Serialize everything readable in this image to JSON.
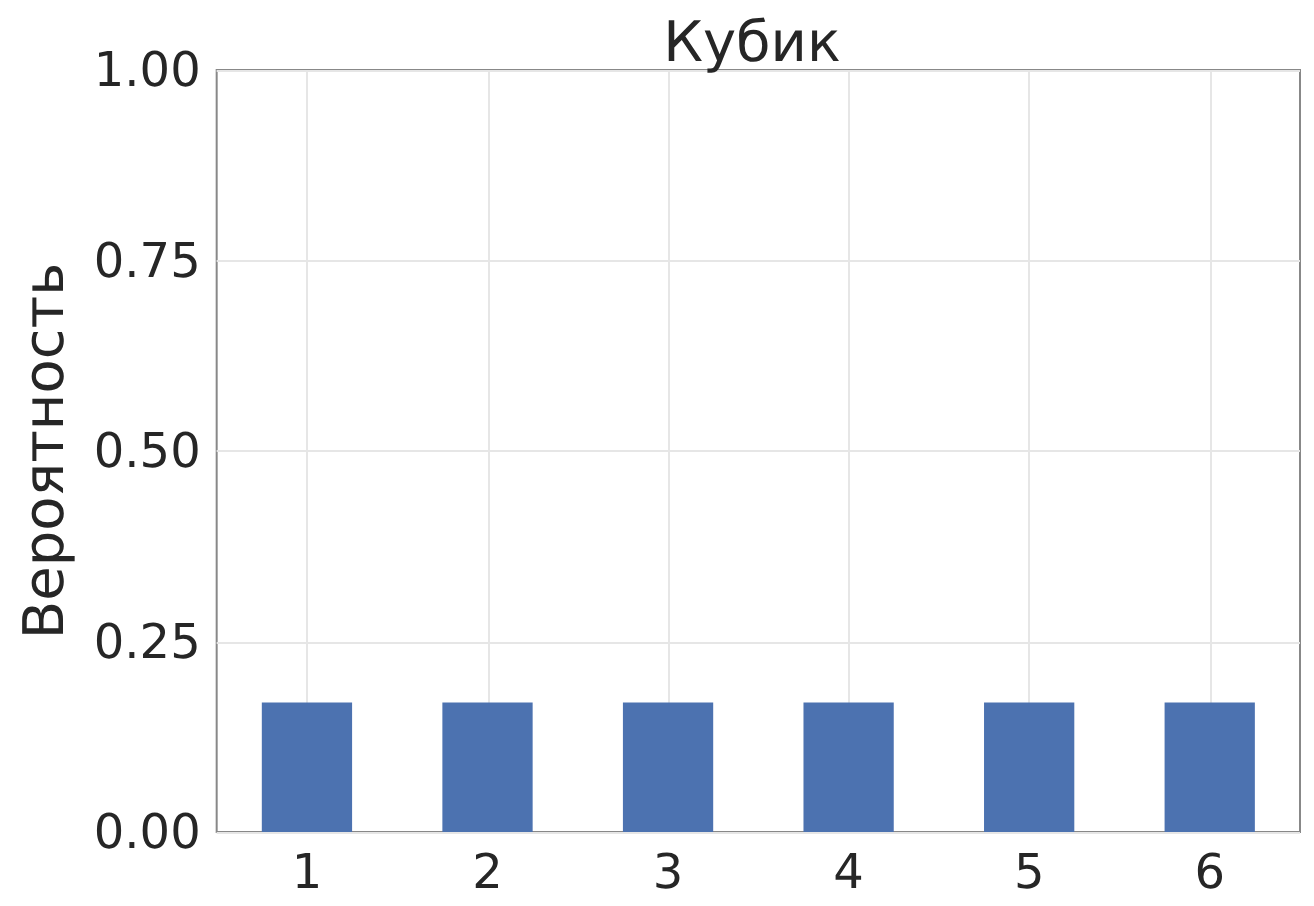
{
  "chart_data": {
    "type": "bar",
    "title": "Кубик",
    "ylabel": "Вероятность",
    "categories": [
      "1",
      "2",
      "3",
      "4",
      "5",
      "6"
    ],
    "values": [
      0.17,
      0.17,
      0.17,
      0.17,
      0.17,
      0.17
    ],
    "color": "#4c72b0",
    "ylim": [
      0,
      1
    ],
    "yticks": [
      {
        "value": 0,
        "label": "0.00"
      },
      {
        "value": 0.25,
        "label": "0.25"
      },
      {
        "value": 0.5,
        "label": "0.50"
      },
      {
        "value": 0.75,
        "label": "0.75"
      },
      {
        "value": 1,
        "label": "1.00"
      }
    ],
    "grid": true
  }
}
